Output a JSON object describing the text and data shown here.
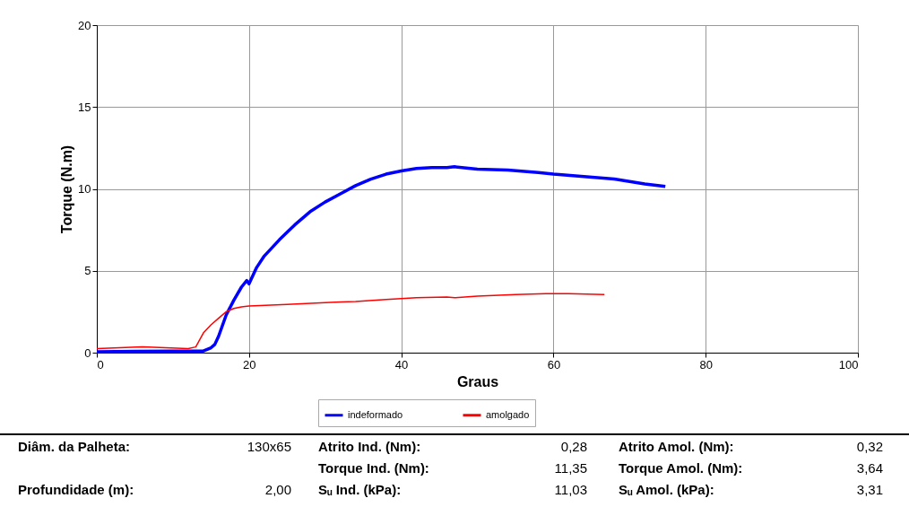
{
  "chart_data": {
    "type": "line",
    "xlabel": "Graus",
    "ylabel": "Torque (N.m)",
    "xlim": [
      0,
      100
    ],
    "xticks": [
      0,
      20,
      40,
      60,
      80,
      100
    ],
    "ylim": [
      0,
      20
    ],
    "yticks": [
      0,
      5,
      10,
      15,
      20
    ],
    "grid": true,
    "legend": "bottom",
    "marker": "none",
    "line_style": "solid",
    "series": [
      {
        "name": "indeformado",
        "color": "#0000ff",
        "x": [
          0,
          5,
          10,
          14,
          15,
          15.5,
          16,
          17,
          18,
          19,
          19.7,
          20,
          21,
          22,
          24,
          26,
          28,
          30,
          32,
          34,
          36,
          38,
          40,
          42,
          44,
          46,
          47,
          50,
          54,
          58,
          60,
          64,
          68,
          72,
          74.7
        ],
        "values": [
          0.05,
          0.08,
          0.1,
          0.1,
          0.3,
          0.5,
          1.0,
          2.3,
          3.2,
          4.0,
          4.4,
          4.2,
          5.2,
          5.9,
          6.9,
          7.8,
          8.6,
          9.2,
          9.7,
          10.2,
          10.6,
          10.9,
          11.1,
          11.25,
          11.3,
          11.3,
          11.35,
          11.2,
          11.15,
          11.0,
          10.9,
          10.75,
          10.6,
          10.3,
          10.15
        ]
      },
      {
        "name": "amolgado",
        "color": "#ff0000",
        "x": [
          0,
          3,
          6,
          9,
          12,
          13,
          14,
          15,
          16,
          17,
          18,
          19,
          20,
          25,
          30,
          32,
          34,
          38,
          42,
          46,
          47,
          50,
          55,
          59,
          62,
          66.7
        ],
        "values": [
          0.25,
          0.3,
          0.35,
          0.3,
          0.25,
          0.35,
          1.2,
          1.7,
          2.1,
          2.5,
          2.7,
          2.8,
          2.85,
          2.95,
          3.05,
          3.1,
          3.12,
          3.25,
          3.35,
          3.4,
          3.35,
          3.45,
          3.55,
          3.6,
          3.6,
          3.55
        ]
      }
    ],
    "annotations": [
      "Diâm. da Palheta:",
      "130x65",
      "Atrito Ind. (Nm):",
      "0,28",
      "Atrito Amol. (Nm):",
      "0,32",
      "Torque Ind. (Nm):",
      "11,35",
      "Torque Amol. (Nm):",
      "3,64",
      "Profundidade (m):",
      "2,00",
      "Sᵤ Ind. (kPa):",
      "11,03",
      "Sᵤ Amol. (kPa):",
      "3,31"
    ]
  }
}
